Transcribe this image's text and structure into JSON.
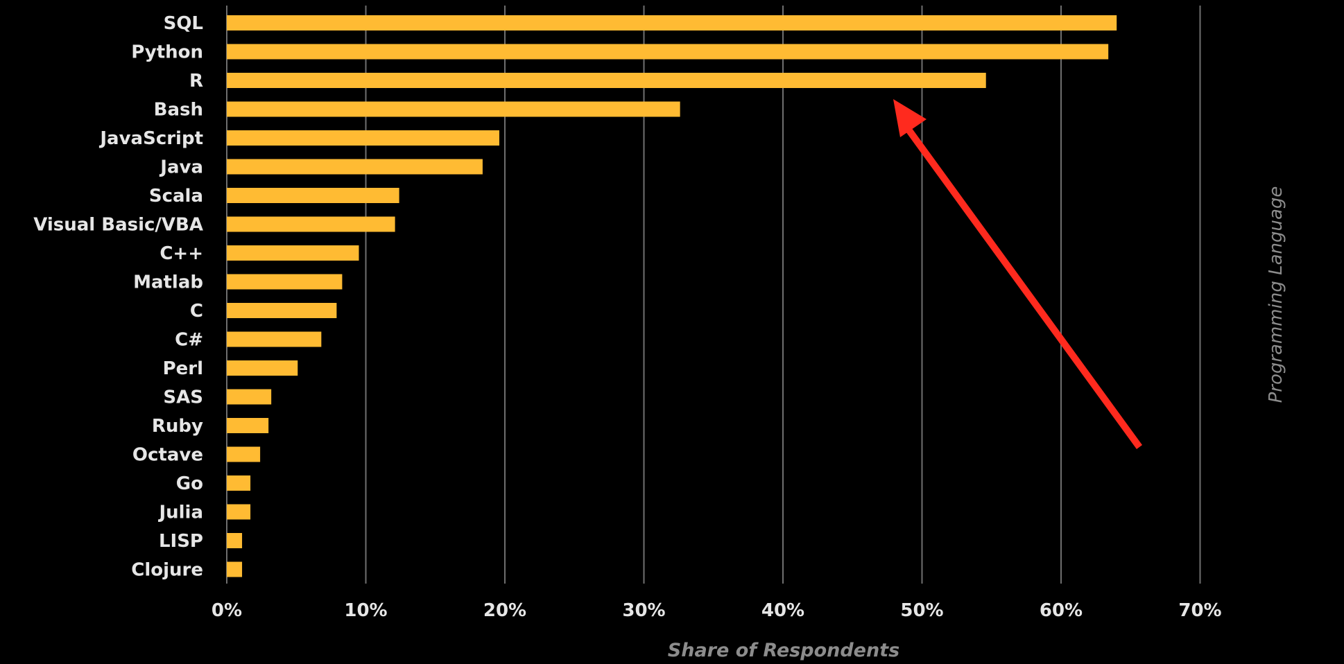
{
  "colors": {
    "background": "#000000",
    "bar": "#FFBB33",
    "grid": "#6f6f6f",
    "label": "#e6e6e6",
    "axis_title": "#8c8c8c",
    "arrow": "#FF2A1E"
  },
  "chart_data": {
    "type": "bar",
    "orientation": "horizontal",
    "categories": [
      "SQL",
      "Python",
      "R",
      "Bash",
      "JavaScript",
      "Java",
      "Scala",
      "Visual Basic/VBA",
      "C++",
      "Matlab",
      "C",
      "C#",
      "Perl",
      "SAS",
      "Ruby",
      "Octave",
      "Go",
      "Julia",
      "LISP",
      "Clojure"
    ],
    "values": [
      64,
      63.4,
      54.6,
      32.6,
      19.6,
      18.4,
      12.4,
      12.1,
      9.5,
      8.3,
      7.9,
      6.8,
      5.1,
      3.2,
      3.0,
      2.4,
      1.7,
      1.7,
      1.1,
      1.1
    ],
    "xlabel": "Share of Respondents",
    "ylabel": "Programming Language",
    "xlim": [
      0,
      70
    ],
    "xticks": [
      "0%",
      "10%",
      "20%",
      "30%",
      "40%",
      "50%",
      "60%",
      "70%"
    ],
    "grid": "vertical",
    "annotation": {
      "type": "arrow",
      "points_to": "R"
    }
  }
}
